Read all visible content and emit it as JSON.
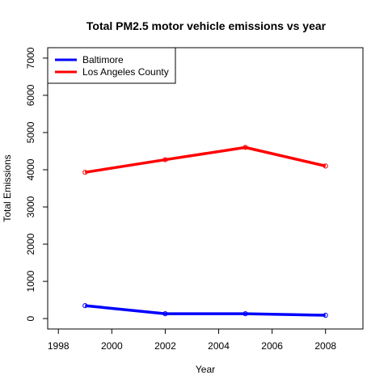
{
  "chart_data": {
    "type": "line",
    "title": "Total PM2.5 motor vehicle  emissions vs year",
    "xlabel": "Year",
    "ylabel": "Total Emissions",
    "xlim": [
      1997.6,
      2009.4
    ],
    "ylim": [
      -280,
      7280
    ],
    "xticks": [
      1998,
      2000,
      2002,
      2004,
      2006,
      2008
    ],
    "yticks": [
      0,
      1000,
      2000,
      3000,
      4000,
      5000,
      6000,
      7000
    ],
    "legend_position": "top-left",
    "grid": false,
    "series": [
      {
        "name": "Baltimore",
        "color": "#0000ff",
        "x": [
          1999,
          2002,
          2005,
          2008
        ],
        "y": [
          347,
          130,
          130,
          89
        ]
      },
      {
        "name": "Los Angeles County",
        "color": "#ff0000",
        "x": [
          1999,
          2002,
          2005,
          2008
        ],
        "y": [
          3930,
          4270,
          4600,
          4100
        ]
      }
    ]
  }
}
